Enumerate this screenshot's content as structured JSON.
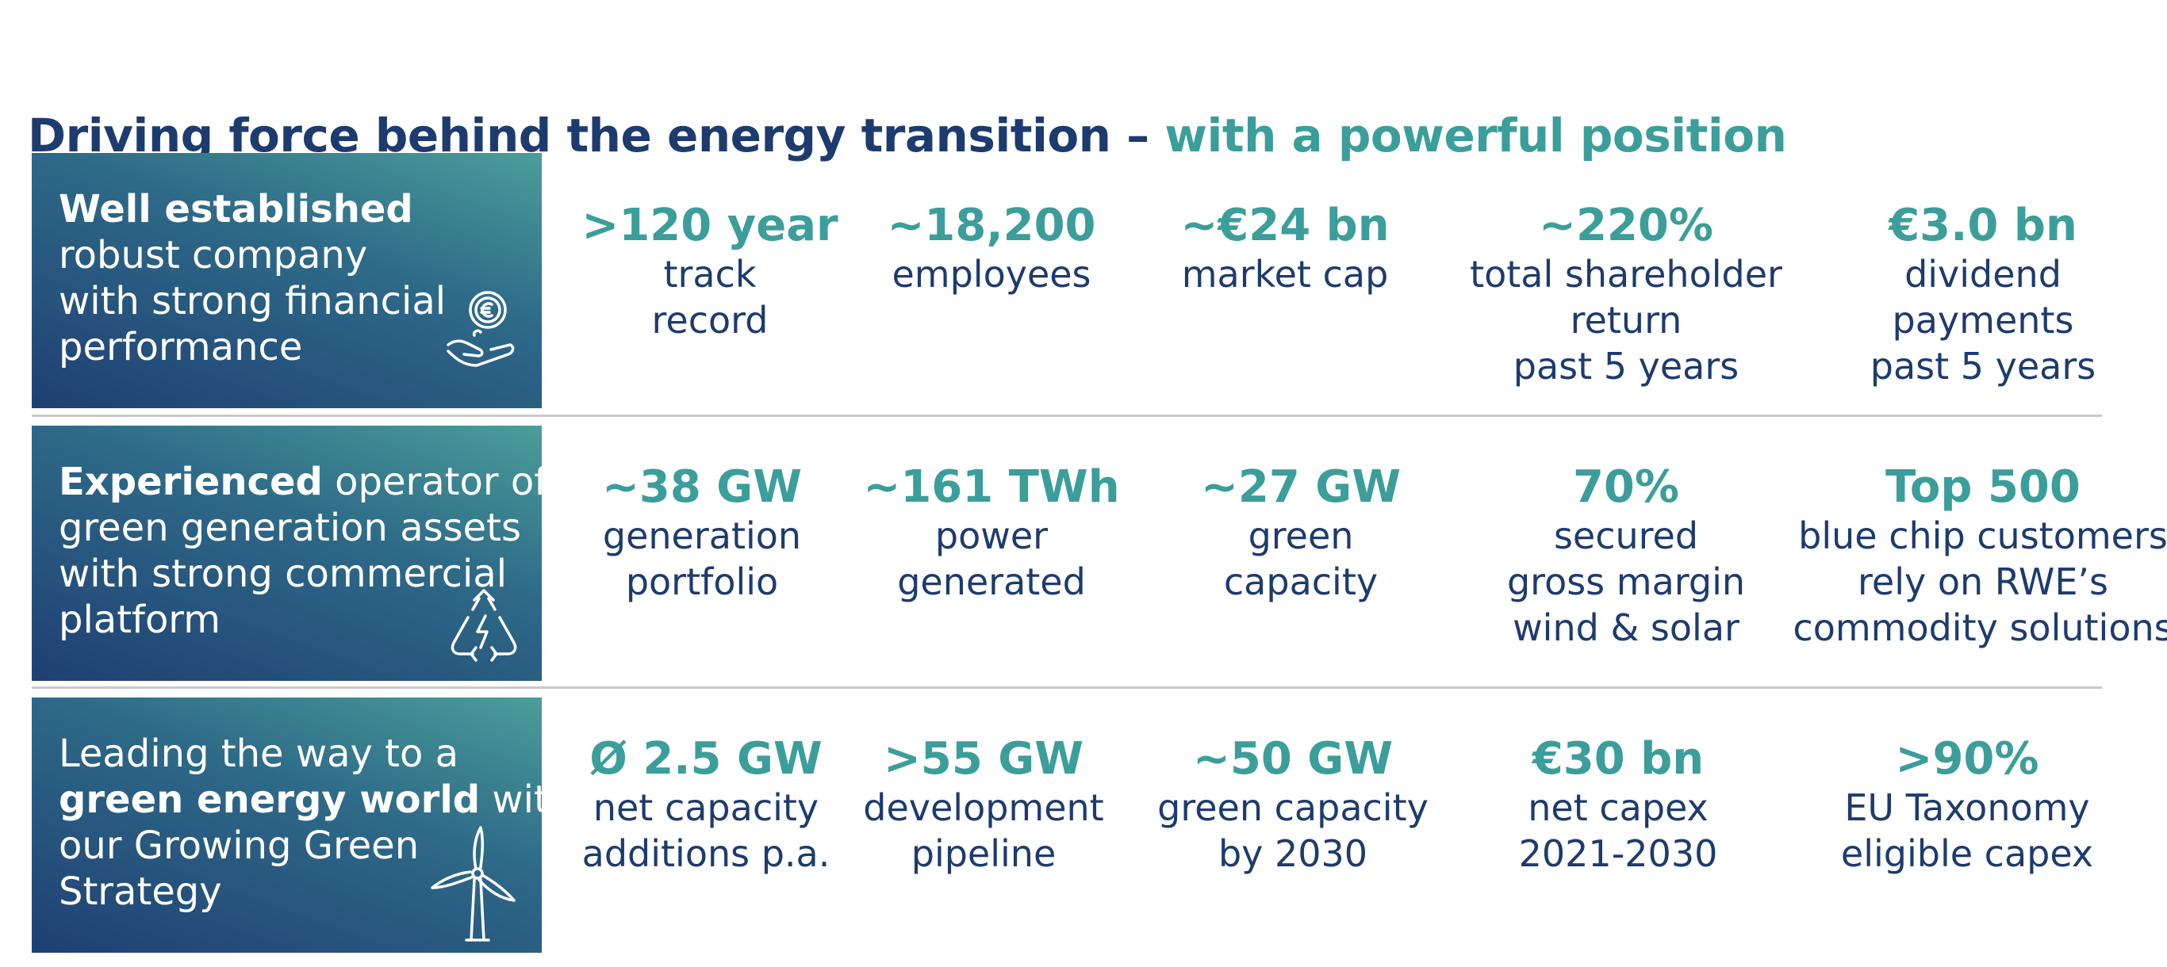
{
  "title": {
    "dark": "Driving force behind the energy transition – ",
    "teal": "with a powerful position"
  },
  "rows": [
    {
      "box": {
        "lines": [
          {
            "bold": "Well established",
            "rest": ""
          },
          {
            "bold": "",
            "rest": "robust company"
          },
          {
            "bold": "",
            "rest": "with strong financial"
          },
          {
            "bold": "",
            "rest": "performance"
          }
        ],
        "icon": "euro-coin-hand-icon"
      },
      "stats": [
        {
          "value": ">120 year",
          "label": [
            "track",
            "record"
          ]
        },
        {
          "value": "~18,200",
          "label": [
            "employees"
          ]
        },
        {
          "value": "~€24 bn",
          "label": [
            "market cap"
          ]
        },
        {
          "value": "~220%",
          "label": [
            "total shareholder",
            "return",
            "past 5 years"
          ]
        },
        {
          "value": "€3.0 bn",
          "label": [
            "dividend",
            "payments",
            "past 5 years"
          ]
        }
      ]
    },
    {
      "box": {
        "lines": [
          {
            "bold": "Experienced",
            "rest": " operator of"
          },
          {
            "bold": "",
            "rest": "green generation assets"
          },
          {
            "bold": "",
            "rest": "with strong commercial"
          },
          {
            "bold": "",
            "rest": "platform"
          }
        ],
        "icon": "recycle-lightning-icon"
      },
      "stats": [
        {
          "value": "~38 GW",
          "label": [
            "generation",
            "portfolio"
          ]
        },
        {
          "value": "~161 TWh",
          "label": [
            "power",
            "generated"
          ]
        },
        {
          "value": "~27 GW",
          "label": [
            "green",
            "capacity"
          ]
        },
        {
          "value": "70%",
          "label": [
            "secured",
            "gross margin",
            "wind & solar"
          ]
        },
        {
          "value": "Top 500",
          "label": [
            "blue chip customers",
            "rely on RWE’s",
            "commodity solutions"
          ]
        }
      ]
    },
    {
      "box": {
        "lines": [
          {
            "bold": "",
            "rest": "Leading the way to a"
          },
          {
            "bold": "green energy world",
            "rest": " with"
          },
          {
            "bold": "",
            "rest": "our Growing Green"
          },
          {
            "bold": "",
            "rest": "Strategy"
          }
        ],
        "icon": "wind-turbine-icon"
      },
      "stats": [
        {
          "value": "Ø 2.5 GW",
          "label": [
            "net capacity",
            "additions p.a."
          ]
        },
        {
          "value": ">55 GW",
          "label": [
            "development",
            "pipeline"
          ]
        },
        {
          "value": "~50 GW",
          "label": [
            "green capacity",
            "by 2030"
          ]
        },
        {
          "value": "€30 bn",
          "label": [
            "net capex",
            "2021-2030"
          ]
        },
        {
          "value": ">90%",
          "label": [
            "EU Taxonomy",
            "eligible capex"
          ]
        }
      ]
    }
  ]
}
